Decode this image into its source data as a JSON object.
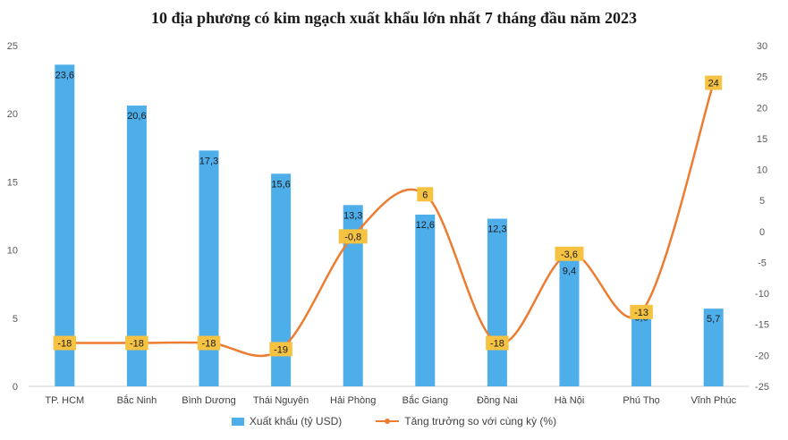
{
  "chart_data": {
    "type": "bar",
    "title": "10 địa phương có kim ngạch xuất khẩu lớn nhất 7 tháng đầu năm 2023",
    "categories": [
      "TP. HCM",
      "Bắc Ninh",
      "Bình Dương",
      "Thái Nguyên",
      "Hải Phòng",
      "Bắc Giang",
      "Đồng Nai",
      "Hà Nội",
      "Phú Thọ",
      "Vĩnh Phúc"
    ],
    "series": [
      {
        "name": "Xuất khẩu (tỷ USD)",
        "type": "bar",
        "axis": "left",
        "values": [
          23.6,
          20.6,
          17.3,
          15.6,
          13.3,
          12.6,
          12.3,
          9.4,
          5.8,
          5.7
        ],
        "labels": [
          "23,6",
          "20,6",
          "17,3",
          "15,6",
          "13,3",
          "12,6",
          "12,3",
          "9,4",
          "5,8",
          "5,7"
        ],
        "color": "#4daeea"
      },
      {
        "name": "Tăng trưởng so với cùng kỳ (%)",
        "type": "line",
        "axis": "right",
        "values": [
          -18,
          -18,
          -18,
          -19,
          -0.8,
          6,
          -18,
          -3.6,
          -13,
          24
        ],
        "labels": [
          "-18",
          "-18",
          "-18",
          "-19",
          "-0,8",
          "6",
          "-18",
          "-3,6",
          "-13",
          "24"
        ],
        "color": "#ec7c30",
        "label_box_color": "#f5c242"
      }
    ],
    "y_left": {
      "lim": [
        0,
        25
      ],
      "ticks": [
        "0",
        "5",
        "10",
        "15",
        "20",
        "25"
      ]
    },
    "y_right": {
      "lim": [
        -25,
        30
      ],
      "ticks": [
        "-25",
        "-20",
        "-15",
        "-10",
        "-5",
        "0",
        "5",
        "10",
        "15",
        "20",
        "25",
        "30"
      ]
    },
    "grid": false,
    "legend_position": "bottom"
  }
}
